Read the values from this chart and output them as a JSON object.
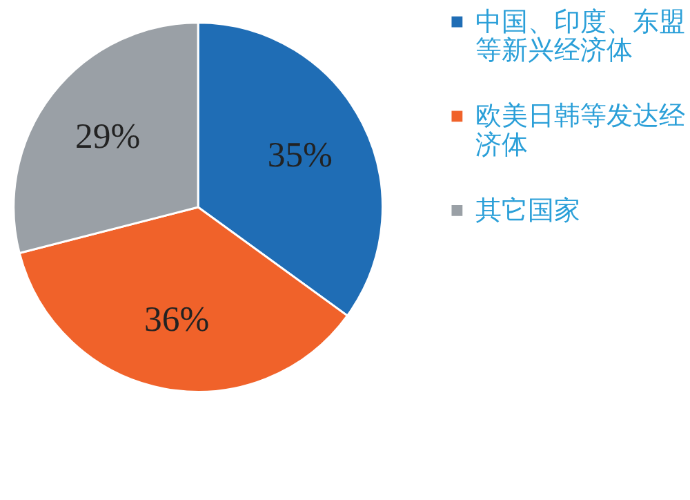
{
  "chart_data": {
    "type": "pie",
    "categories": [
      "中国、印度、东盟等新兴经济体",
      "欧美日韩等发达经济体",
      "其它国家"
    ],
    "values": [
      35,
      36,
      29
    ],
    "colors": [
      "#1f6db5",
      "#f0622a",
      "#9aa0a6"
    ],
    "value_labels": [
      "35%",
      "36%",
      "29%"
    ],
    "legend": "right"
  }
}
